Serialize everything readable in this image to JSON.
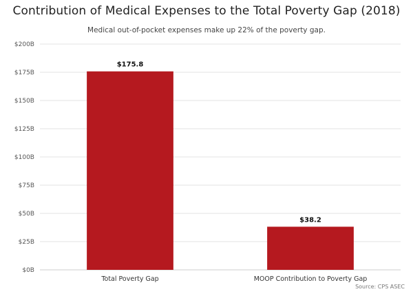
{
  "chart_data": {
    "type": "bar",
    "title": "Contribution of Medical Expenses to the Total Poverty Gap (2018)",
    "subtitle": "Medical out-of-pocket expenses make up 22% of the poverty gap.",
    "categories": [
      "Total Poverty Gap",
      "MOOP Contribution to Poverty Gap"
    ],
    "values": [
      175.8,
      38.2
    ],
    "data_labels": [
      "$175.8",
      "$38.2"
    ],
    "ylim": [
      0,
      200
    ],
    "yticks": [
      0,
      25,
      50,
      75,
      100,
      125,
      150,
      175,
      200
    ],
    "ytick_labels": [
      "$0B",
      "$25B",
      "$50B",
      "$75B",
      "$100B",
      "$125B",
      "$150B",
      "$175B",
      "$200B"
    ],
    "xlabel": "",
    "ylabel": "",
    "grid": true,
    "legend": "none",
    "colors": {
      "bar": "#b5191f",
      "grid": "#e3e3e3",
      "axis": "#cccccc"
    },
    "source": "Source: CPS ASEC"
  }
}
